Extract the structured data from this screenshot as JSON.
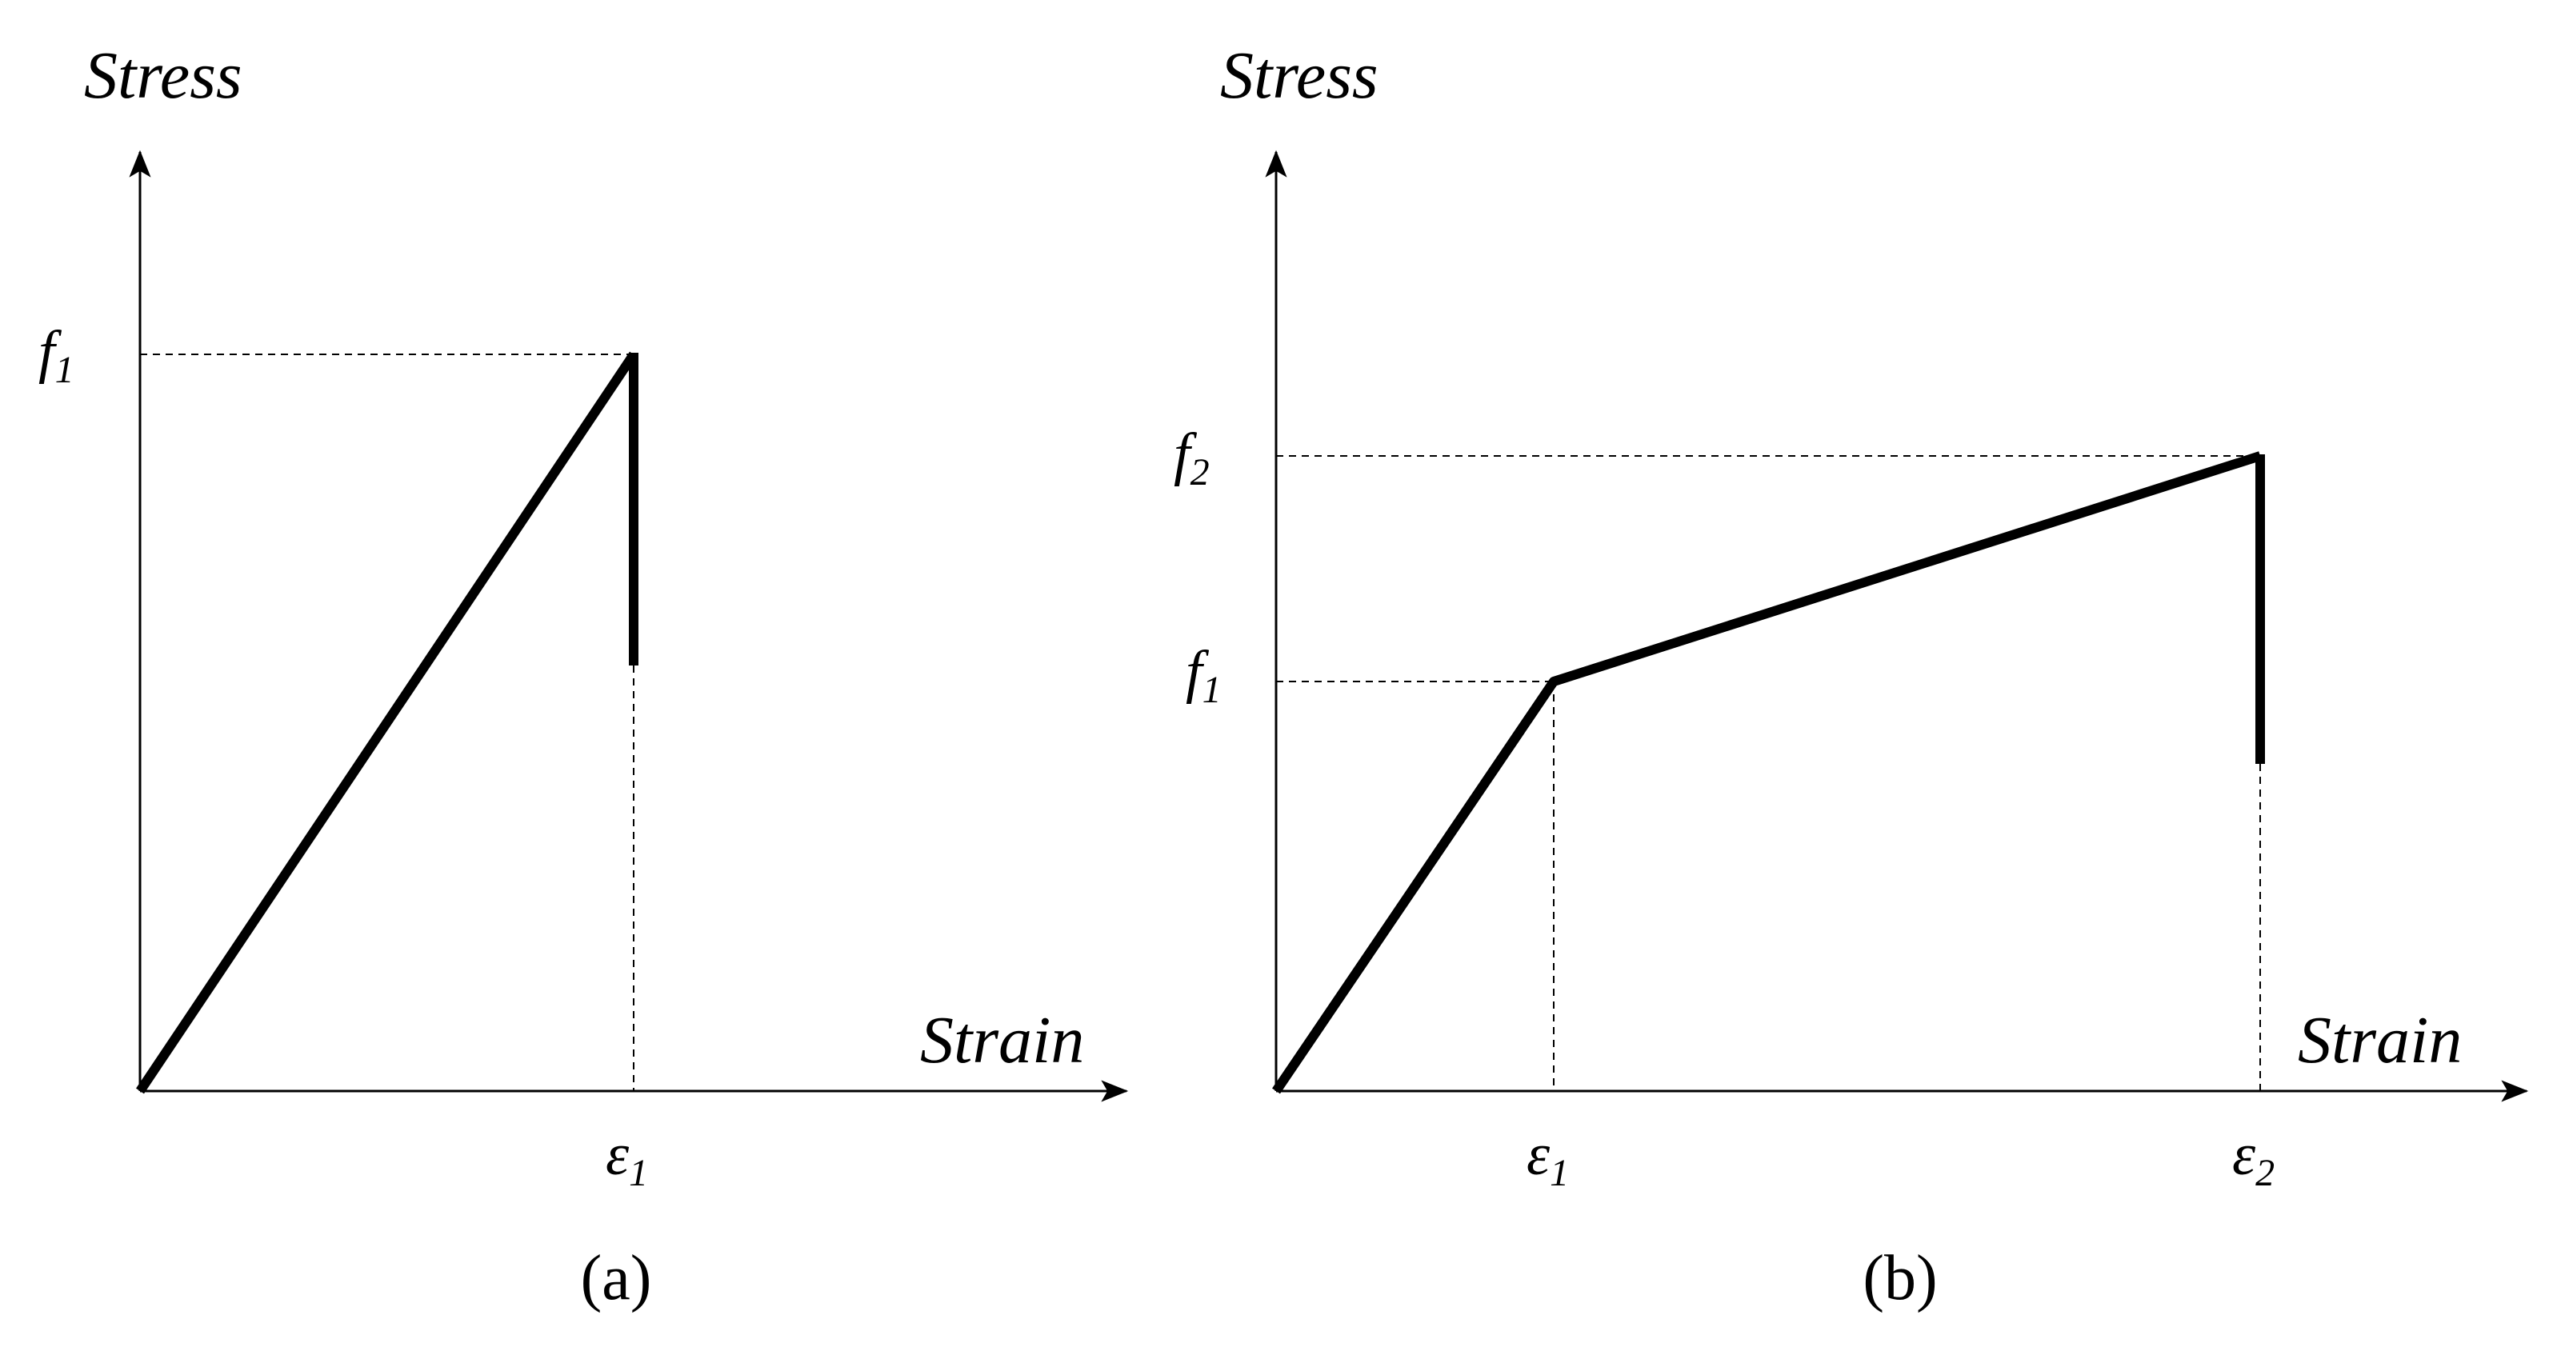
{
  "colors": {
    "line": "#000000",
    "background": "#ffffff"
  },
  "panels": [
    {
      "caption": "(a)",
      "y_axis_label": "Stress",
      "x_axis_label": "Strain",
      "stress_levels": [
        {
          "base": "f",
          "sub": "1"
        }
      ],
      "strain_levels": [
        {
          "base": "ε",
          "sub": "1"
        }
      ],
      "curve": "linear to peak stress f1 at strain ε1, then vertical drop"
    },
    {
      "caption": "(b)",
      "y_axis_label": "Stress",
      "x_axis_label": "Strain",
      "stress_levels": [
        {
          "base": "f",
          "sub": "2"
        },
        {
          "base": "f",
          "sub": "1"
        }
      ],
      "strain_levels": [
        {
          "base": "ε",
          "sub": "1"
        },
        {
          "base": "ε",
          "sub": "2"
        }
      ],
      "curve": "bilinear: to f1 at ε1, then to f2 at ε2, then vertical drop"
    }
  ]
}
